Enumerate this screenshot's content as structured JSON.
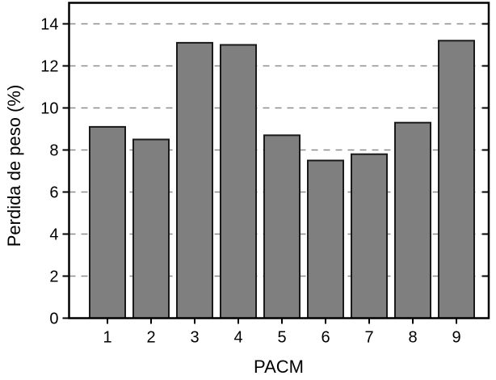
{
  "chart_data": {
    "type": "bar",
    "title": "",
    "xlabel": "PACM",
    "ylabel": "Perdida de peso (%)",
    "categories": [
      "1",
      "2",
      "3",
      "4",
      "5",
      "6",
      "7",
      "8",
      "9"
    ],
    "values": [
      9.1,
      8.5,
      13.1,
      13.0,
      8.7,
      7.5,
      7.8,
      9.3,
      13.2
    ],
    "ylim": [
      0,
      15
    ],
    "yticks": [
      0,
      2,
      4,
      6,
      8,
      10,
      12,
      14
    ],
    "grid": {
      "horizontal": true,
      "style": "dashed",
      "at": [
        2,
        4,
        6,
        8,
        10,
        12,
        14
      ]
    },
    "legend": null,
    "colors": {
      "bar_fill": "#7f7f7f",
      "bar_stroke": "#1a1a1a",
      "grid_line": "#8c8c8c",
      "axis": "#000000",
      "background": "#ffffff",
      "text": "#000000"
    }
  }
}
